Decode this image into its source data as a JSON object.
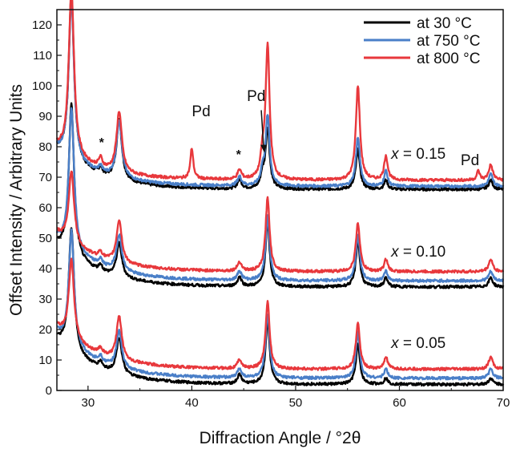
{
  "chart_data": {
    "type": "line",
    "title": "",
    "xlabel": "Diffraction Angle / °2θ",
    "ylabel": "Offset Intensity / Arbitrary Units",
    "xlim": [
      27,
      70
    ],
    "ylim": [
      0,
      125
    ],
    "xticks": [
      30,
      40,
      50,
      60,
      70
    ],
    "yticks": [
      0,
      10,
      20,
      30,
      40,
      50,
      60,
      70,
      80,
      90,
      100,
      110,
      120
    ],
    "grid": false,
    "legend_position": "top-right",
    "colors": {
      "at 30 °C": "#000000",
      "at 750 °C": "#4a7fc8",
      "at 800 °C": "#e8383c"
    },
    "series": [
      {
        "name": "at 30 °C"
      },
      {
        "name": "at 750 °C"
      },
      {
        "name": "at 800 °C"
      }
    ],
    "curve_groups": [
      {
        "label_var": "x",
        "label_value": " = 0.15",
        "base": [
          66,
          67,
          69
        ],
        "first_x": 27,
        "first_y": [
          79,
          79,
          80
        ],
        "peaks": [
          {
            "x": 28.4,
            "h": [
              55,
              53,
              55
            ],
            "w": 0.45
          },
          {
            "x": 33.0,
            "h": [
              20,
              19,
              20
            ],
            "w": 0.45
          },
          {
            "x": 31.2,
            "h": [
              2,
              2,
              3
            ],
            "w": 0.3
          },
          {
            "x": 40.0,
            "h": [
              0,
              0,
              10
            ],
            "w": 0.25
          },
          {
            "x": 44.6,
            "h": [
              3,
              3,
              3
            ],
            "w": 0.35
          },
          {
            "x": 46.8,
            "h": [
              4,
              4,
              6
            ],
            "w": 0.3
          },
          {
            "x": 47.3,
            "h": [
              20,
              23,
              44
            ],
            "w": 0.35
          },
          {
            "x": 56.0,
            "h": [
              13,
              16,
              31
            ],
            "w": 0.35
          },
          {
            "x": 58.7,
            "h": [
              3,
              5,
              8
            ],
            "w": 0.3
          },
          {
            "x": 67.6,
            "h": [
              0,
              0,
              3
            ],
            "w": 0.25
          },
          {
            "x": 68.8,
            "h": [
              3,
              4,
              5
            ],
            "w": 0.35
          }
        ]
      },
      {
        "label_var": "x",
        "label_value": " = 0.10",
        "base": [
          34,
          36,
          39
        ],
        "first_x": 27,
        "first_y": [
          48,
          50,
          52
        ],
        "peaks": [
          {
            "x": 28.4,
            "h": [
              50,
              47,
              24
            ],
            "w": 0.45
          },
          {
            "x": 31.2,
            "h": [
              2,
              2,
              2
            ],
            "w": 0.3
          },
          {
            "x": 33.0,
            "h": [
              11,
              12,
              14
            ],
            "w": 0.45
          },
          {
            "x": 44.6,
            "h": [
              3,
              3,
              3
            ],
            "w": 0.35
          },
          {
            "x": 47.3,
            "h": [
              21,
              21,
              24
            ],
            "w": 0.35
          },
          {
            "x": 56.0,
            "h": [
              15,
              15,
              16
            ],
            "w": 0.35
          },
          {
            "x": 58.7,
            "h": [
              3,
              3,
              4
            ],
            "w": 0.3
          },
          {
            "x": 68.8,
            "h": [
              3,
              3,
              4
            ],
            "w": 0.35
          }
        ]
      },
      {
        "label_var": "x",
        "label_value": " = 0.05",
        "base": [
          2,
          4,
          7
        ],
        "first_x": 27,
        "first_y": [
          17,
          19,
          21
        ],
        "peaks": [
          {
            "x": 28.4,
            "h": [
              41,
              38,
              26
            ],
            "w": 0.45
          },
          {
            "x": 31.2,
            "h": [
              2,
              2,
              2
            ],
            "w": 0.3
          },
          {
            "x": 33.0,
            "h": [
              12,
              12,
              14
            ],
            "w": 0.45
          },
          {
            "x": 44.6,
            "h": [
              3,
              3,
              3
            ],
            "w": 0.35
          },
          {
            "x": 47.3,
            "h": [
              21,
              21,
              22
            ],
            "w": 0.35
          },
          {
            "x": 56.0,
            "h": [
              13,
              15,
              15
            ],
            "w": 0.35
          },
          {
            "x": 58.7,
            "h": [
              2,
              3,
              4
            ],
            "w": 0.3
          },
          {
            "x": 68.8,
            "h": [
              2,
              3,
              4
            ],
            "w": 0.35
          }
        ]
      }
    ],
    "annotations": [
      {
        "text": "Pd",
        "x": 40.9,
        "y": 90
      },
      {
        "text": "Pd",
        "x": 46.2,
        "y": 95
      },
      {
        "text": "Pd",
        "x": 66.8,
        "y": 74
      },
      {
        "text": "*",
        "x": 31.3,
        "y": 80
      },
      {
        "text": "*",
        "x": 44.5,
        "y": 76
      }
    ],
    "arrow": {
      "from": [
        47.0,
        92
      ],
      "to": [
        47.0,
        78
      ]
    }
  }
}
